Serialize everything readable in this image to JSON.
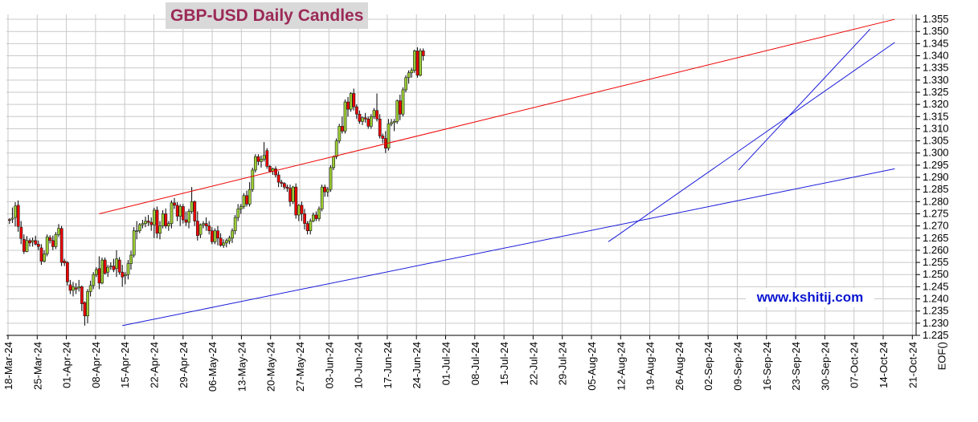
{
  "chart_data": {
    "type": "candlestick",
    "title": "GBP-USD Daily Candles",
    "watermark": "www.kshitij.com",
    "ylim": [
      1.225,
      1.355
    ],
    "y_ticks": [
      "1.225",
      "1.230",
      "1.235",
      "1.240",
      "1.245",
      "1.250",
      "1.255",
      "1.260",
      "1.265",
      "1.270",
      "1.275",
      "1.280",
      "1.285",
      "1.290",
      "1.295",
      "1.300",
      "1.305",
      "1.310",
      "1.315",
      "1.320",
      "1.325",
      "1.330",
      "1.335",
      "1.340",
      "1.345",
      "1.350",
      "1.355"
    ],
    "x_ticks": [
      "18-Mar-24",
      "25-Mar-24",
      "01-Apr-24",
      "08-Apr-24",
      "15-Apr-24",
      "22-Apr-24",
      "29-Apr-24",
      "06-May-24",
      "13-May-24",
      "20-May-24",
      "27-May-24",
      "03-Jun-24",
      "10-Jun-24",
      "17-Jun-24",
      "24-Jun-24",
      "01-Jul-24",
      "08-Jul-24",
      "15-Jul-24",
      "22-Jul-24",
      "29-Jul-24",
      "05-Aug-24",
      "12-Aug-24",
      "19-Aug-24",
      "26-Aug-24",
      "02-Sep-24",
      "09-Sep-24",
      "16-Sep-24",
      "23-Sep-24",
      "30-Sep-24",
      "07-Oct-24",
      "14-Oct-24",
      "21-Oct-24",
      "EOF()"
    ],
    "grid": true,
    "up_color": "#9acd32",
    "down_color": "#ee0000",
    "candles": [
      [
        1.2726,
        1.2732,
        1.2708,
        1.2725
      ],
      [
        1.2728,
        1.2776,
        1.2712,
        1.2732
      ],
      [
        1.2735,
        1.2798,
        1.2698,
        1.2782
      ],
      [
        1.2785,
        1.2805,
        1.2676,
        1.2698
      ],
      [
        1.2695,
        1.272,
        1.2625,
        1.2648
      ],
      [
        1.2645,
        1.2665,
        1.2585,
        1.2595
      ],
      [
        1.2595,
        1.2658,
        1.2592,
        1.264
      ],
      [
        1.264,
        1.2648,
        1.2615,
        1.263
      ],
      [
        1.2635,
        1.2652,
        1.2615,
        1.264
      ],
      [
        1.264,
        1.266,
        1.262,
        1.2625
      ],
      [
        1.2625,
        1.264,
        1.26,
        1.2615
      ],
      [
        1.261,
        1.2625,
        1.254,
        1.2555
      ],
      [
        1.2555,
        1.26,
        1.255,
        1.2585
      ],
      [
        1.2585,
        1.2665,
        1.2575,
        1.2655
      ],
      [
        1.2652,
        1.2662,
        1.2628,
        1.264
      ],
      [
        1.264,
        1.266,
        1.26,
        1.2615
      ],
      [
        1.2615,
        1.2675,
        1.2605,
        1.2665
      ],
      [
        1.2665,
        1.2708,
        1.2655,
        1.269
      ],
      [
        1.269,
        1.27,
        1.2535,
        1.255
      ],
      [
        1.2555,
        1.2565,
        1.2535,
        1.2548
      ],
      [
        1.255,
        1.2555,
        1.2455,
        1.247
      ],
      [
        1.2458,
        1.2478,
        1.242,
        1.2435
      ],
      [
        1.2435,
        1.247,
        1.241,
        1.245
      ],
      [
        1.2445,
        1.2465,
        1.242,
        1.244
      ],
      [
        1.2445,
        1.2478,
        1.243,
        1.245
      ],
      [
        1.245,
        1.2455,
        1.235,
        1.238
      ],
      [
        1.2385,
        1.239,
        1.229,
        1.233
      ],
      [
        1.233,
        1.244,
        1.23,
        1.243
      ],
      [
        1.243,
        1.2475,
        1.241,
        1.2455
      ],
      [
        1.2455,
        1.251,
        1.244,
        1.25
      ],
      [
        1.25,
        1.253,
        1.249,
        1.252
      ],
      [
        1.2525,
        1.2575,
        1.244,
        1.2465
      ],
      [
        1.2465,
        1.257,
        1.246,
        1.256
      ],
      [
        1.256,
        1.257,
        1.25,
        1.2505
      ],
      [
        1.251,
        1.254,
        1.249,
        1.253
      ],
      [
        1.2535,
        1.255,
        1.252,
        1.2535
      ],
      [
        1.2535,
        1.2565,
        1.251,
        1.252
      ],
      [
        1.2525,
        1.26,
        1.249,
        1.2565
      ],
      [
        1.256,
        1.2572,
        1.25,
        1.251
      ],
      [
        1.251,
        1.254,
        1.245,
        1.249
      ],
      [
        1.2495,
        1.251,
        1.246,
        1.25
      ],
      [
        1.25,
        1.256,
        1.248,
        1.2545
      ],
      [
        1.2545,
        1.2598,
        1.252,
        1.258
      ],
      [
        1.258,
        1.2695,
        1.257,
        1.268
      ],
      [
        1.268,
        1.272,
        1.2645,
        1.268
      ],
      [
        1.268,
        1.2712,
        1.267,
        1.2705
      ],
      [
        1.2705,
        1.2725,
        1.269,
        1.271
      ],
      [
        1.271,
        1.2738,
        1.2695,
        1.272
      ],
      [
        1.272,
        1.2745,
        1.27,
        1.2715
      ],
      [
        1.2715,
        1.2735,
        1.268,
        1.2705
      ],
      [
        1.2705,
        1.2775,
        1.265,
        1.2765
      ],
      [
        1.2765,
        1.278,
        1.265,
        1.267
      ],
      [
        1.267,
        1.272,
        1.2645,
        1.27
      ],
      [
        1.27,
        1.2765,
        1.269,
        1.275
      ],
      [
        1.275,
        1.2772,
        1.269,
        1.27
      ],
      [
        1.27,
        1.272,
        1.268,
        1.271
      ],
      [
        1.271,
        1.2805,
        1.269,
        1.2795
      ],
      [
        1.2795,
        1.2815,
        1.277,
        1.2785
      ],
      [
        1.2785,
        1.2798,
        1.272,
        1.274
      ],
      [
        1.274,
        1.279,
        1.27,
        1.278
      ],
      [
        1.278,
        1.279,
        1.271,
        1.2725
      ],
      [
        1.2725,
        1.276,
        1.27,
        1.2715
      ],
      [
        1.2715,
        1.277,
        1.269,
        1.276
      ],
      [
        1.276,
        1.286,
        1.275,
        1.28
      ],
      [
        1.28,
        1.2805,
        1.27,
        1.272
      ],
      [
        1.272,
        1.276,
        1.264,
        1.266
      ],
      [
        1.2665,
        1.271,
        1.265,
        1.2705
      ],
      [
        1.2705,
        1.272,
        1.269,
        1.271
      ],
      [
        1.271,
        1.2735,
        1.268,
        1.27
      ],
      [
        1.27,
        1.272,
        1.2665,
        1.268
      ],
      [
        1.268,
        1.2695,
        1.2625,
        1.2635
      ],
      [
        1.2635,
        1.269,
        1.2625,
        1.268
      ],
      [
        1.268,
        1.27,
        1.262,
        1.265
      ],
      [
        1.265,
        1.267,
        1.2615,
        1.262
      ],
      [
        1.262,
        1.2645,
        1.261,
        1.263
      ],
      [
        1.263,
        1.2648,
        1.2612,
        1.264
      ],
      [
        1.2638,
        1.266,
        1.2625,
        1.265
      ],
      [
        1.265,
        1.269,
        1.263,
        1.268
      ],
      [
        1.268,
        1.2745,
        1.2665,
        1.2735
      ],
      [
        1.2735,
        1.279,
        1.272,
        1.277
      ],
      [
        1.277,
        1.279,
        1.275,
        1.278
      ],
      [
        1.278,
        1.2835,
        1.277,
        1.2825
      ],
      [
        1.2825,
        1.2845,
        1.278,
        1.279
      ],
      [
        1.279,
        1.288,
        1.278,
        1.285
      ],
      [
        1.285,
        1.294,
        1.284,
        1.293
      ],
      [
        1.293,
        1.2995,
        1.292,
        1.2985
      ],
      [
        1.2985,
        1.2995,
        1.295,
        1.2965
      ],
      [
        1.2965,
        1.299,
        1.294,
        1.2975
      ],
      [
        1.2975,
        1.3045,
        1.2965,
        1.299
      ],
      [
        1.301,
        1.302,
        1.2935,
        1.2945
      ],
      [
        1.2945,
        1.295,
        1.292,
        1.2925
      ],
      [
        1.2925,
        1.294,
        1.291,
        1.2935
      ],
      [
        1.2935,
        1.2945,
        1.29,
        1.291
      ],
      [
        1.291,
        1.2925,
        1.286,
        1.288
      ],
      [
        1.288,
        1.289,
        1.286,
        1.2875
      ],
      [
        1.2875,
        1.288,
        1.285,
        1.286
      ],
      [
        1.286,
        1.287,
        1.284,
        1.2855
      ],
      [
        1.2855,
        1.287,
        1.278,
        1.28
      ],
      [
        1.28,
        1.2865,
        1.279,
        1.286
      ],
      [
        1.286,
        1.2875,
        1.273,
        1.2745
      ],
      [
        1.2745,
        1.279,
        1.272,
        1.2785
      ],
      [
        1.2785,
        1.28,
        1.272,
        1.275
      ],
      [
        1.275,
        1.277,
        1.2685,
        1.271
      ],
      [
        1.271,
        1.272,
        1.2665,
        1.268
      ],
      [
        1.268,
        1.273,
        1.2665,
        1.272
      ],
      [
        1.272,
        1.2755,
        1.2715,
        1.2745
      ],
      [
        1.2745,
        1.276,
        1.272,
        1.273
      ],
      [
        1.273,
        1.278,
        1.272,
        1.277
      ],
      [
        1.277,
        1.287,
        1.276,
        1.286
      ],
      [
        1.286,
        1.287,
        1.282,
        1.284
      ],
      [
        1.284,
        1.286,
        1.282,
        1.285
      ],
      [
        1.285,
        1.295,
        1.284,
        1.294
      ],
      [
        1.294,
        1.299,
        1.293,
        1.2985
      ],
      [
        1.2985,
        1.306,
        1.2975,
        1.305
      ],
      [
        1.305,
        1.312,
        1.304,
        1.311
      ],
      [
        1.311,
        1.315,
        1.308,
        1.309
      ],
      [
        1.309,
        1.322,
        1.308,
        1.321
      ],
      [
        1.321,
        1.323,
        1.315,
        1.318
      ],
      [
        1.318,
        1.325,
        1.317,
        1.3245
      ],
      [
        1.3245,
        1.3265,
        1.3175,
        1.319
      ],
      [
        1.319,
        1.32,
        1.314,
        1.316
      ],
      [
        1.316,
        1.3175,
        1.312,
        1.313
      ],
      [
        1.313,
        1.315,
        1.3115,
        1.3145
      ],
      [
        1.3145,
        1.3165,
        1.3125,
        1.314
      ],
      [
        1.314,
        1.315,
        1.31,
        1.311
      ],
      [
        1.311,
        1.316,
        1.31,
        1.315
      ],
      [
        1.315,
        1.3185,
        1.314,
        1.3175
      ],
      [
        1.3175,
        1.3245,
        1.313,
        1.314
      ],
      [
        1.314,
        1.316,
        1.306,
        1.307
      ],
      [
        1.307,
        1.308,
        1.304,
        1.306
      ],
      [
        1.306,
        1.309,
        1.3,
        1.302
      ],
      [
        1.302,
        1.314,
        1.301,
        1.312
      ],
      [
        1.312,
        1.314,
        1.311,
        1.3125
      ],
      [
        1.3125,
        1.314,
        1.309,
        1.313
      ],
      [
        1.313,
        1.322,
        1.312,
        1.3215
      ],
      [
        1.3215,
        1.324,
        1.3135,
        1.316
      ],
      [
        1.316,
        1.327,
        1.315,
        1.326
      ],
      [
        1.326,
        1.332,
        1.325,
        1.331
      ],
      [
        1.331,
        1.334,
        1.3285,
        1.333
      ],
      [
        1.333,
        1.335,
        1.331,
        1.334
      ],
      [
        1.334,
        1.3425,
        1.333,
        1.342
      ],
      [
        1.342,
        1.3435,
        1.331,
        1.332
      ],
      [
        1.332,
        1.343,
        1.3315,
        1.342
      ],
      [
        1.342,
        1.343,
        1.338,
        1.34
      ]
    ],
    "trend_lines": [
      {
        "color": "#ee0000",
        "from": [
          31.5,
          1.275
        ],
        "to": [
          306.5,
          1.355
        ]
      },
      {
        "color": "#1a1adc",
        "from": [
          39.5,
          1.229
        ],
        "to": [
          306.5,
          1.2935
        ]
      },
      {
        "color": "#1a1adc",
        "from": [
          207.5,
          1.2635
        ],
        "to": [
          306.5,
          1.3455
        ]
      },
      {
        "color": "#1a1adc",
        "from": [
          252.5,
          1.293
        ],
        "to": [
          298.0,
          1.351
        ]
      }
    ]
  }
}
